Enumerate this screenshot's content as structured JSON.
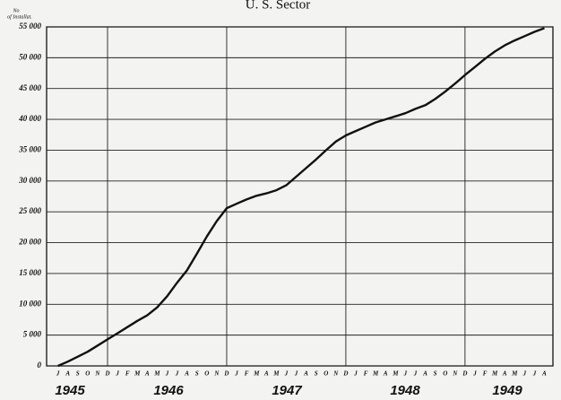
{
  "chart_data": {
    "type": "line",
    "title": "U. S. Sector",
    "y_label": [
      "No",
      "of Installat."
    ],
    "categories": [
      "J",
      "A",
      "S",
      "O",
      "N",
      "D",
      "J",
      "F",
      "M",
      "A",
      "M",
      "J",
      "J",
      "A",
      "S",
      "O",
      "N",
      "D",
      "J",
      "F",
      "M",
      "A",
      "M",
      "J",
      "J",
      "A",
      "S",
      "O",
      "N",
      "D",
      "J",
      "F",
      "M",
      "A",
      "M",
      "J",
      "J",
      "A",
      "S",
      "O",
      "N",
      "D",
      "J",
      "F",
      "M",
      "A",
      "M",
      "J",
      "J",
      "A"
    ],
    "years": [
      "1945",
      "1946",
      "1947",
      "1948",
      "1949"
    ],
    "series": [
      {
        "name": "U. S. Sector",
        "color": "#111111",
        "values": [
          0,
          700,
          1500,
          2300,
          3300,
          4300,
          5300,
          6300,
          7300,
          8200,
          9500,
          11300,
          13500,
          15500,
          18200,
          21000,
          23500,
          25600,
          26300,
          27000,
          27600,
          28000,
          28500,
          29300,
          30700,
          32100,
          33500,
          35000,
          36400,
          37400,
          38100,
          38800,
          39500,
          40000,
          40500,
          41000,
          41700,
          42300,
          43300,
          44500,
          45800,
          47200,
          48500,
          49800,
          51000,
          52000,
          52800,
          53500,
          54200,
          54800
        ]
      }
    ],
    "ylim": [
      0,
      55000
    ],
    "yticks": [
      {
        "value": 0,
        "label": "0"
      },
      {
        "value": 5000,
        "label": "5 000"
      },
      {
        "value": 10000,
        "label": "10 000"
      },
      {
        "value": 15000,
        "label": "15 000"
      },
      {
        "value": 20000,
        "label": "20 000"
      },
      {
        "value": 25000,
        "label": "25 000"
      },
      {
        "value": 30000,
        "label": "30 000"
      },
      {
        "value": 35000,
        "label": "35 000"
      },
      {
        "value": 40000,
        "label": "40 000"
      },
      {
        "value": 45000,
        "label": "45 000"
      },
      {
        "value": 50000,
        "label": "50 000"
      },
      {
        "value": 55000,
        "label": "55 000"
      }
    ],
    "grid": true
  }
}
